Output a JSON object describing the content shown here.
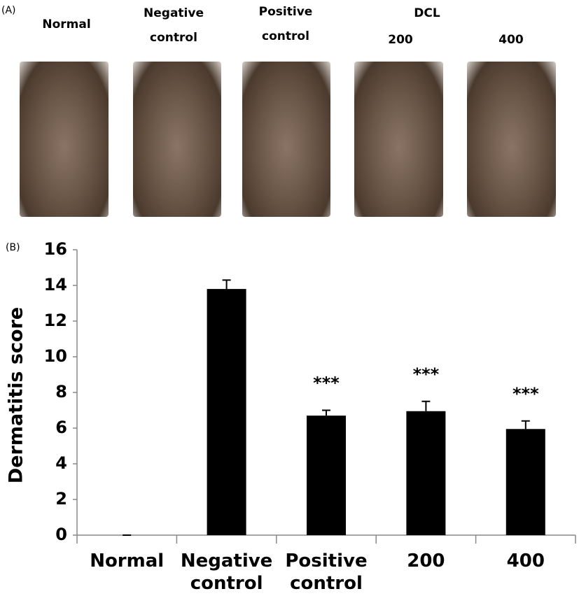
{
  "panel_a": {
    "label": "(A)",
    "groups": [
      "Normal",
      "Negative control",
      "Positive control",
      "200",
      "400"
    ],
    "group_header": "DCL"
  },
  "chart_data": {
    "type": "bar",
    "panel_label": "(B)",
    "y_label": "Dermatitis score",
    "categories": [
      "Normal",
      "Negative control",
      "Positive control",
      "200",
      "400"
    ],
    "values": [
      0,
      13.8,
      6.7,
      6.95,
      5.95
    ],
    "errors": [
      0,
      0.5,
      0.3,
      0.55,
      0.45
    ],
    "annotations": [
      null,
      null,
      "***",
      "***",
      "***"
    ],
    "color": "#000000",
    "ylim": [
      0,
      16
    ],
    "yticks": [
      0,
      2,
      4,
      6,
      8,
      10,
      12,
      14,
      16
    ]
  }
}
